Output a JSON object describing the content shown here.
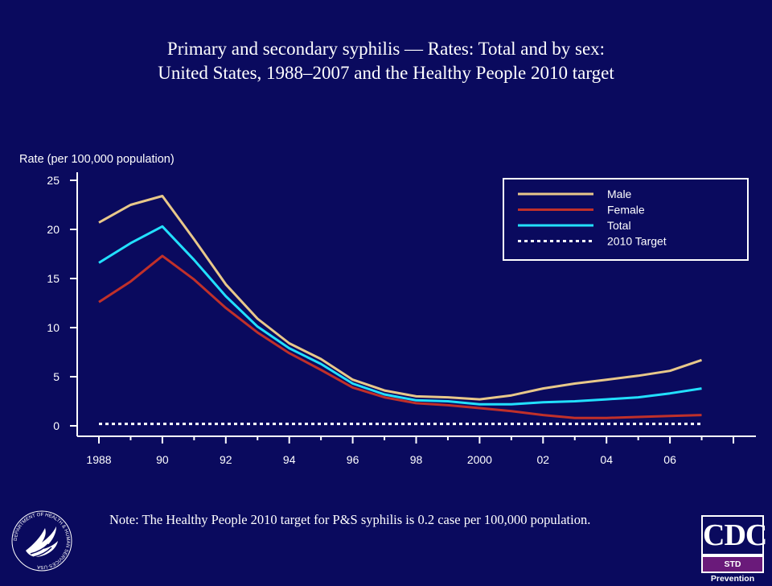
{
  "title": {
    "line1": "Primary and secondary syphilis — Rates: Total and by sex:",
    "line2": "United States, 1988–2007 and the Healthy People 2010 target"
  },
  "note": "Note: The Healthy People 2010 target for P&S syphilis is 0.2 case per 100,000 population.",
  "logos": {
    "cdc_text": "CDC",
    "cdc_subtext": "STD Prevention",
    "hhs_label": "DEPARTMENT OF HEALTH & HUMAN SERVICES·USA"
  },
  "chart_data": {
    "type": "line",
    "ylabel": "Rate (per 100,000 population)",
    "xlabel": "",
    "x": [
      1988,
      1989,
      1990,
      1991,
      1992,
      1993,
      1994,
      1995,
      1996,
      1997,
      1998,
      1999,
      2000,
      2001,
      2002,
      2003,
      2004,
      2005,
      2006,
      2007
    ],
    "xlim": [
      1988,
      2008
    ],
    "x_ticks": [
      1988,
      1990,
      1992,
      1994,
      1996,
      1998,
      2000,
      2002,
      2004,
      2006
    ],
    "x_tick_labels": [
      "1988",
      "90",
      "92",
      "94",
      "96",
      "98",
      "2000",
      "02",
      "04",
      "06"
    ],
    "ylim": [
      0,
      25
    ],
    "y_ticks": [
      0,
      5,
      10,
      15,
      20,
      25
    ],
    "y_tick_labels": [
      "0",
      "5",
      "10",
      "15",
      "20",
      "25"
    ],
    "grid": false,
    "legend_position": "top-right",
    "series": [
      {
        "name": "Male",
        "color": "#e8c88a",
        "dashed": false,
        "values": [
          20.7,
          22.5,
          23.4,
          19.0,
          14.4,
          10.9,
          8.4,
          6.8,
          4.7,
          3.6,
          3.0,
          2.9,
          2.7,
          3.1,
          3.8,
          4.3,
          4.7,
          5.1,
          5.6,
          6.7
        ]
      },
      {
        "name": "Female",
        "color": "#c0302a",
        "dashed": false,
        "values": [
          12.6,
          14.7,
          17.3,
          14.9,
          12.0,
          9.5,
          7.4,
          5.7,
          3.9,
          2.9,
          2.3,
          2.1,
          1.8,
          1.5,
          1.1,
          0.8,
          0.8,
          0.9,
          1.0,
          1.1
        ]
      },
      {
        "name": "Total",
        "color": "#22e0ff",
        "dashed": false,
        "values": [
          16.6,
          18.6,
          20.3,
          16.9,
          13.2,
          10.1,
          7.9,
          6.3,
          4.3,
          3.2,
          2.6,
          2.5,
          2.2,
          2.2,
          2.4,
          2.5,
          2.7,
          2.9,
          3.3,
          3.8
        ]
      },
      {
        "name": "2010 Target",
        "color": "#ffffff",
        "dashed": true,
        "values": [
          0.2,
          0.2,
          0.2,
          0.2,
          0.2,
          0.2,
          0.2,
          0.2,
          0.2,
          0.2,
          0.2,
          0.2,
          0.2,
          0.2,
          0.2,
          0.2,
          0.2,
          0.2,
          0.2,
          0.2
        ]
      }
    ]
  }
}
